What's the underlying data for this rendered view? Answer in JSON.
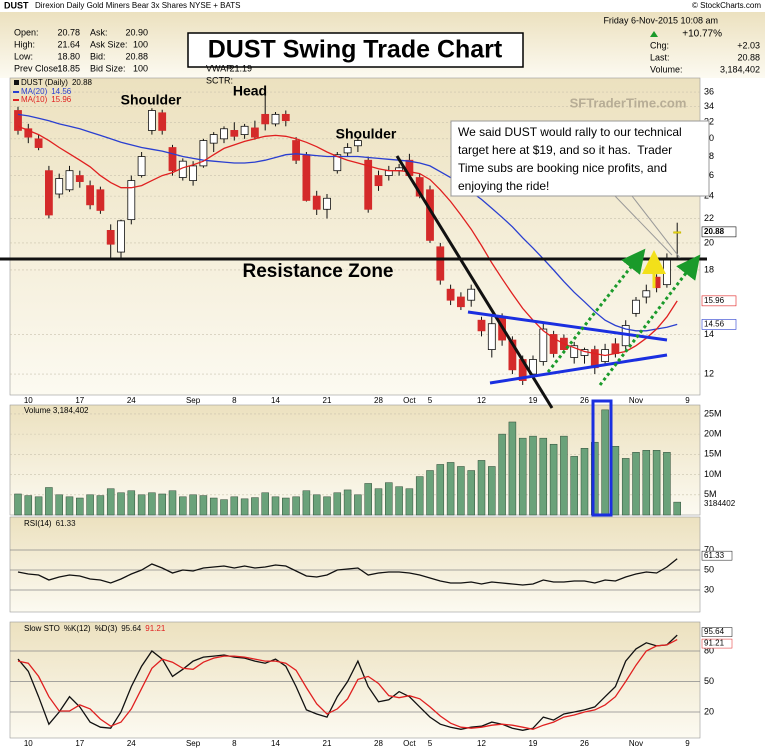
{
  "header": {
    "symbol": "DUST",
    "description": "Direxion Daily Gold Miners Bear 3x Shares NYSE + BATS",
    "copyright": "© StockCharts.com",
    "datetime": "Friday 6-Nov-2015 10:08 am",
    "change_pct": "+10.77%",
    "change_color": "#1a9a2a",
    "quote_left": [
      [
        "Open:",
        "20.78"
      ],
      [
        "High:",
        "21.64"
      ],
      [
        "Low:",
        "18.80"
      ],
      [
        "Prev Close:",
        "18.85"
      ]
    ],
    "quote_mid": [
      [
        "Ask:",
        "20.90"
      ],
      [
        "Ask Size:",
        "100"
      ],
      [
        "Bid:",
        "20.88"
      ],
      [
        "Bid Size:",
        "100"
      ]
    ],
    "quote_vwap": [
      [
        "VWAP:",
        "21.19"
      ],
      [
        "SCTR:"
      ]
    ],
    "quote_right": [
      [
        "Chg:",
        "+2.03"
      ],
      [
        "Last:",
        "20.88"
      ],
      [
        "Volume:",
        "3,184,402"
      ]
    ]
  },
  "chart_data": [
    {
      "type": "candlestick",
      "title": "DUST Swing Trade Chart",
      "name": "DUST (Daily)",
      "watermark": "SFTraderTime.com",
      "annotations": [
        "Shoulder",
        "Head",
        "Shoulder",
        "Resistance Zone"
      ],
      "callout": [
        "We said DUST would rally to our technical",
        "target here at $19, and so it has.  Trader",
        "Time subs are booking nice profits, and",
        "enjoying the ride!"
      ],
      "log_scale": true,
      "grid": true,
      "up_color": "#ffffff",
      "down_color": "#d42a2a",
      "highlight_color": "#ffee22",
      "categories": [
        null,
        "10",
        null,
        null,
        null,
        null,
        "17",
        null,
        null,
        null,
        null,
        "24",
        null,
        null,
        null,
        null,
        null,
        "Sep",
        null,
        null,
        null,
        "8",
        null,
        null,
        null,
        "14",
        null,
        null,
        null,
        null,
        "21",
        null,
        null,
        null,
        null,
        "28",
        null,
        null,
        "Oct",
        null,
        "5",
        null,
        null,
        null,
        null,
        "12",
        null,
        null,
        null,
        null,
        "19",
        null,
        null,
        null,
        null,
        "26",
        null,
        null,
        null,
        null,
        "Nov",
        null,
        null,
        null,
        null,
        "9"
      ],
      "open": [
        33.5,
        31.2,
        30.0,
        26.5,
        24.2,
        24.6,
        26.0,
        25.0,
        24.6,
        21.0,
        19.3,
        21.9,
        26.0,
        31.0,
        33.2,
        29.0,
        25.8,
        25.5,
        27.0,
        29.5,
        30.0,
        31.0,
        30.5,
        31.3,
        33.0,
        31.8,
        33.0,
        29.8,
        28.2,
        24.0,
        22.8,
        26.5,
        28.4,
        29.2,
        27.6,
        26.0,
        26.0,
        26.5,
        27.6,
        25.8,
        24.6,
        19.7,
        16.7,
        16.2,
        16.0,
        14.8,
        13.2,
        15.0,
        13.7,
        12.7,
        12.0,
        12.6,
        14.0,
        13.8,
        12.8,
        12.9,
        13.2,
        12.6,
        13.5,
        13.4,
        15.2,
        16.2,
        17.5,
        17.0,
        20.78,
        null
      ],
      "high": [
        34.0,
        31.8,
        30.5,
        27.0,
        26.2,
        27.0,
        26.5,
        25.5,
        24.9,
        21.5,
        21.9,
        26.0,
        28.5,
        33.8,
        33.6,
        29.3,
        27.8,
        27.5,
        30.0,
        30.8,
        31.5,
        32.0,
        31.8,
        32.2,
        36.3,
        33.3,
        33.5,
        30.2,
        28.5,
        24.5,
        24.2,
        28.5,
        29.5,
        30.2,
        28.0,
        26.5,
        27.0,
        27.2,
        28.3,
        26.2,
        25.0,
        20.0,
        17.0,
        16.5,
        17.0,
        15.0,
        15.0,
        15.2,
        13.9,
        12.9,
        12.9,
        14.6,
        14.2,
        14.0,
        13.6,
        13.3,
        13.4,
        13.5,
        13.8,
        14.8,
        16.2,
        17.0,
        17.7,
        19.2,
        21.64,
        null
      ],
      "low": [
        30.5,
        29.5,
        28.7,
        22.0,
        23.8,
        24.4,
        24.8,
        22.8,
        22.4,
        18.8,
        18.8,
        21.5,
        25.8,
        30.5,
        30.5,
        26.0,
        25.5,
        25.0,
        26.8,
        28.5,
        29.5,
        29.8,
        30.0,
        29.9,
        31.0,
        31.5,
        31.5,
        27.2,
        23.5,
        22.3,
        22.0,
        26.2,
        28.0,
        28.5,
        22.5,
        24.5,
        25.5,
        26.0,
        25.8,
        23.8,
        20.0,
        17.0,
        15.7,
        15.4,
        15.6,
        13.9,
        12.8,
        13.4,
        12.0,
        11.5,
        11.8,
        12.4,
        12.8,
        13.0,
        12.5,
        12.5,
        12.0,
        12.4,
        12.8,
        13.2,
        15.0,
        15.8,
        16.5,
        16.8,
        18.8,
        null
      ],
      "close": [
        31.0,
        30.2,
        29.0,
        22.3,
        25.7,
        26.5,
        25.4,
        23.2,
        22.7,
        19.9,
        21.8,
        25.5,
        28.0,
        33.5,
        31.0,
        26.5,
        27.5,
        27.0,
        29.8,
        30.5,
        31.2,
        30.3,
        31.5,
        30.2,
        31.8,
        33.0,
        32.2,
        27.6,
        23.6,
        22.8,
        23.8,
        28.2,
        29.0,
        29.8,
        22.8,
        25.0,
        26.5,
        26.8,
        26.0,
        24.0,
        20.2,
        17.3,
        16.0,
        15.6,
        16.7,
        14.2,
        14.6,
        13.7,
        12.2,
        11.7,
        12.7,
        14.3,
        13.0,
        13.2,
        13.4,
        13.2,
        12.3,
        13.2,
        13.0,
        14.5,
        16.0,
        16.6,
        16.8,
        18.85,
        20.88,
        null
      ],
      "series": [
        {
          "name": "MA(20)",
          "color": "#2a3fd0",
          "values": [
            33.0,
            32.8,
            32.5,
            32.2,
            31.8,
            31.5,
            31.2,
            30.8,
            30.4,
            30.0,
            29.6,
            29.3,
            29.0,
            28.8,
            28.6,
            28.3,
            28.0,
            27.8,
            27.6,
            27.5,
            27.4,
            27.3,
            27.3,
            27.4,
            27.6,
            27.9,
            28.2,
            28.3,
            28.2,
            28.1,
            28.0,
            28.0,
            28.0,
            28.0,
            27.9,
            27.8,
            27.7,
            27.6,
            27.5,
            27.3,
            27.0,
            26.4,
            25.8,
            25.1,
            24.4,
            23.7,
            22.9,
            22.1,
            21.3,
            20.4,
            19.6,
            18.8,
            18.0,
            17.2,
            16.5,
            15.9,
            15.3,
            14.8,
            14.5,
            14.3,
            14.2,
            14.2,
            14.3,
            14.4,
            14.56,
            null
          ]
        },
        {
          "name": "MA(10)",
          "color": "#e02020",
          "values": [
            31.5,
            31.0,
            30.5,
            29.8,
            29.0,
            28.3,
            27.6,
            26.9,
            26.0,
            25.3,
            24.8,
            24.8,
            25.0,
            25.5,
            26.0,
            26.3,
            26.8,
            27.1,
            27.5,
            28.2,
            28.9,
            29.3,
            29.7,
            30.0,
            30.3,
            30.4,
            30.3,
            30.0,
            29.6,
            29.1,
            28.5,
            28.0,
            27.6,
            27.3,
            27.0,
            26.7,
            26.5,
            26.5,
            26.4,
            26.2,
            25.6,
            24.6,
            23.5,
            22.3,
            21.1,
            19.8,
            18.5,
            17.4,
            16.4,
            15.5,
            14.8,
            14.2,
            13.8,
            13.5,
            13.3,
            13.1,
            13.0,
            12.9,
            13.0,
            13.1,
            13.4,
            13.8,
            14.3,
            15.0,
            15.96,
            null
          ]
        }
      ],
      "ylim": [
        11.06,
        37.0
      ],
      "yticks": [
        12,
        14,
        18,
        20,
        22,
        24,
        26,
        28,
        30,
        32,
        34,
        36
      ]
    },
    {
      "type": "bar",
      "title": "Volume 3,184,402",
      "color": "#6aa27a",
      "grid": true,
      "values": [
        5200000,
        4800000,
        4500000,
        6800000,
        5000000,
        4500000,
        4200000,
        5000000,
        4800000,
        6500000,
        5500000,
        6000000,
        5000000,
        5500000,
        5200000,
        6000000,
        4500000,
        5000000,
        4800000,
        4200000,
        3800000,
        4500000,
        4000000,
        4300000,
        5500000,
        4500000,
        4200000,
        4500000,
        6000000,
        5000000,
        4500000,
        5500000,
        6200000,
        5000000,
        7800000,
        6500000,
        8000000,
        7000000,
        6500000,
        9500000,
        11000000,
        12500000,
        13000000,
        12000000,
        11000000,
        13500000,
        12000000,
        20000000,
        23000000,
        19000000,
        19500000,
        19000000,
        17500000,
        19500000,
        14500000,
        16500000,
        18000000,
        26000000,
        17000000,
        14000000,
        15500000,
        16000000,
        16000000,
        15500000,
        3184402,
        null
      ],
      "ylim": [
        0,
        27200000
      ],
      "yticks": [
        {
          "value": 5000000,
          "label": "5M"
        },
        {
          "value": 10000000,
          "label": "10M"
        },
        {
          "value": 15000000,
          "label": "15M"
        },
        {
          "value": 20000000,
          "label": "20M"
        },
        {
          "value": 25000000,
          "label": "25M"
        }
      ]
    },
    {
      "type": "line",
      "grid": true,
      "series": [
        {
          "name": "RSI(14)",
          "color": "#111111",
          "values": [
            48,
            46,
            45,
            40,
            43,
            45,
            44,
            41,
            40,
            37,
            41,
            46,
            50,
            56,
            52,
            47,
            50,
            49,
            52,
            53,
            54,
            52,
            54,
            52,
            53,
            55,
            54,
            49,
            44,
            43,
            45,
            50,
            51,
            52,
            45,
            47,
            48,
            48,
            47,
            45,
            42,
            39,
            37,
            37,
            38,
            36,
            38,
            37,
            36,
            35,
            36,
            40,
            38,
            38,
            39,
            39,
            37,
            40,
            39,
            43,
            46,
            48,
            47,
            53,
            61.33,
            null
          ]
        }
      ],
      "ylim": [
        8,
        103
      ],
      "yticks": [
        30,
        50,
        70
      ]
    },
    {
      "type": "line",
      "title": "Slow STO",
      "grid": true,
      "categories": [
        null,
        "10",
        null,
        null,
        null,
        null,
        "17",
        null,
        null,
        null,
        null,
        "24",
        null,
        null,
        null,
        null,
        null,
        "Sep",
        null,
        null,
        null,
        "8",
        null,
        null,
        null,
        "14",
        null,
        null,
        null,
        null,
        "21",
        null,
        null,
        null,
        null,
        "28",
        null,
        null,
        "Oct",
        null,
        "5",
        null,
        null,
        null,
        null,
        "12",
        null,
        null,
        null,
        null,
        "19",
        null,
        null,
        null,
        null,
        "26",
        null,
        null,
        null,
        null,
        "Nov",
        null,
        null,
        null,
        null,
        "9"
      ],
      "series": [
        {
          "name": "%K(12)",
          "color": "#111111",
          "values": [
            72,
            60,
            35,
            8,
            20,
            35,
            25,
            10,
            5,
            4,
            20,
            45,
            65,
            80,
            72,
            55,
            62,
            70,
            74,
            75,
            76,
            74,
            73,
            70,
            68,
            72,
            65,
            45,
            22,
            18,
            15,
            35,
            50,
            70,
            45,
            30,
            32,
            40,
            35,
            25,
            15,
            8,
            5,
            3,
            5,
            6,
            10,
            8,
            4,
            2,
            4,
            15,
            12,
            18,
            20,
            22,
            25,
            35,
            45,
            70,
            82,
            88,
            85,
            86,
            95.64,
            null
          ]
        },
        {
          "name": "%D(3)",
          "color": "#e02020",
          "values": [
            70,
            68,
            55,
            35,
            21,
            21,
            27,
            23,
            13,
            6,
            10,
            23,
            43,
            63,
            72,
            69,
            63,
            62,
            69,
            73,
            75,
            75,
            74,
            72,
            70,
            70,
            68,
            61,
            44,
            28,
            18,
            23,
            33,
            52,
            55,
            48,
            36,
            34,
            36,
            33,
            25,
            16,
            9,
            5,
            4,
            5,
            7,
            8,
            7,
            5,
            3,
            7,
            10,
            15,
            17,
            20,
            22,
            27,
            35,
            50,
            66,
            80,
            85,
            86,
            91.21,
            null
          ]
        }
      ],
      "ylim": [
        -5.6,
        108.5
      ],
      "yticks": [
        20,
        50,
        80
      ]
    }
  ]
}
